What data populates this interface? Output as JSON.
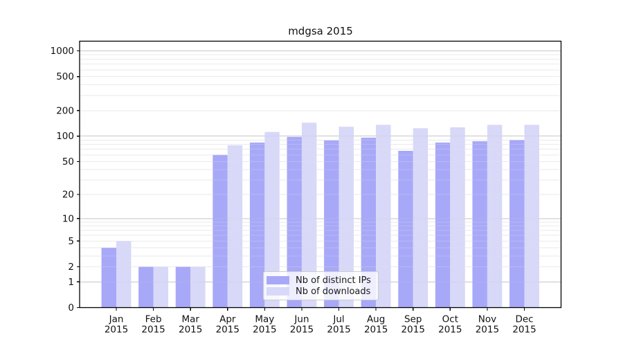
{
  "chart_data": {
    "type": "bar",
    "title": "mdgsa 2015",
    "categories": [
      "Jan 2015",
      "Feb 2015",
      "Mar 2015",
      "Apr 2015",
      "May 2015",
      "Jun 2015",
      "Jul 2015",
      "Aug 2015",
      "Sep 2015",
      "Oct 2015",
      "Nov 2015",
      "Dec 2015"
    ],
    "series": [
      {
        "name": "Nb of distinct IPs",
        "color": "#a8a8f8",
        "values": [
          4,
          2,
          2,
          60,
          84,
          98,
          89,
          96,
          67,
          84,
          87,
          90
        ]
      },
      {
        "name": "Nb of downloads",
        "color": "#d8d8f8",
        "values": [
          5,
          2,
          2,
          78,
          112,
          144,
          129,
          136,
          124,
          127,
          136,
          136
        ]
      }
    ],
    "xlabel": "",
    "ylabel": "",
    "yscale": "log1p",
    "yticks": [
      0,
      1,
      2,
      5,
      10,
      20,
      50,
      100,
      200,
      500,
      1000
    ],
    "ylim": [
      0,
      1300
    ],
    "grid": true,
    "legend_position": "lower center",
    "colors": {
      "major_grid": "#c6c6c6",
      "minor_grid": "#eaeaea",
      "axis": "#000000",
      "text": "#111111"
    }
  }
}
